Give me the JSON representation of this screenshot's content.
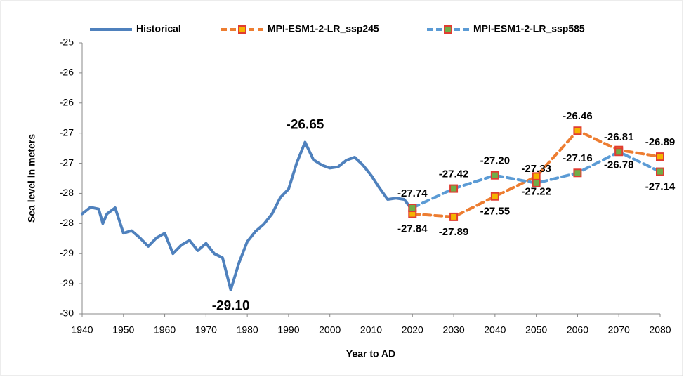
{
  "chart_data": {
    "type": "line",
    "x_label": "Year to AD",
    "y_label": "Sea level in meters",
    "xlim": [
      1940,
      2080
    ],
    "xticks": [
      1940,
      1950,
      1960,
      1970,
      1980,
      1990,
      2000,
      2010,
      2020,
      2030,
      2040,
      2050,
      2060,
      2070,
      2080
    ],
    "ylim": [
      -29.5,
      -25
    ],
    "yticks": [
      -25,
      {
        "value": -25.5,
        "label": "-26"
      },
      -26,
      {
        "value": -26.5,
        "label": "-27"
      },
      -27,
      {
        "value": -27.5,
        "label": "-28"
      },
      -28,
      {
        "value": -28.5,
        "label": "-29"
      },
      -29,
      {
        "value": -29.5,
        "label": "-30"
      }
    ],
    "grid": false,
    "legend": "top",
    "series": [
      {
        "name": "Historical",
        "color": "#4f81bd",
        "dashed": false,
        "x": [
          1940,
          1942,
          1944,
          1945,
          1946,
          1948,
          1950,
          1952,
          1954,
          1956,
          1958,
          1960,
          1962,
          1964,
          1966,
          1968,
          1970,
          1972,
          1974,
          1976,
          1978,
          1980,
          1982,
          1984,
          1986,
          1988,
          1990,
          1992,
          1994,
          1996,
          1998,
          2000,
          2002,
          2004,
          2006,
          2008,
          2010,
          2012,
          2014,
          2016,
          2018,
          2020
        ],
        "values": [
          -27.84,
          -27.73,
          -27.76,
          -28.0,
          -27.84,
          -27.74,
          -28.16,
          -28.12,
          -28.24,
          -28.38,
          -28.24,
          -28.16,
          -28.5,
          -28.36,
          -28.28,
          -28.45,
          -28.33,
          -28.5,
          -28.57,
          -29.1,
          -28.65,
          -28.3,
          -28.13,
          -28.01,
          -27.84,
          -27.57,
          -27.43,
          -26.99,
          -26.65,
          -26.94,
          -27.03,
          -27.08,
          -27.06,
          -26.95,
          -26.9,
          -27.03,
          -27.2,
          -27.41,
          -27.6,
          -27.58,
          -27.6,
          -27.78
        ],
        "value_labels": [
          null,
          null,
          null,
          null,
          null,
          null,
          null,
          null,
          null,
          null,
          null,
          null,
          null,
          null,
          null,
          null,
          null,
          null,
          null,
          "-29.10",
          null,
          null,
          null,
          null,
          null,
          null,
          null,
          null,
          "-26.65",
          null,
          null,
          null,
          null,
          null,
          null,
          null,
          null,
          null,
          null,
          null,
          null,
          null
        ]
      },
      {
        "name": "MPI-ESM1-2-LR_ssp245",
        "color": "#ed7d31",
        "dashed": true,
        "marker_fill": "#f4b400",
        "marker_edge": "#e03c31",
        "x": [
          2020,
          2030,
          2040,
          2050,
          2060,
          2070,
          2080
        ],
        "values": [
          -27.84,
          -27.89,
          -27.55,
          -27.22,
          -26.46,
          -26.78,
          -26.89
        ],
        "value_labels": [
          "-27.84",
          "-27.89",
          "-27.55",
          "-27.22",
          "-26.46",
          "-26.78",
          "-26.89"
        ]
      },
      {
        "name": "MPI-ESM1-2-LR_ssp585",
        "color": "#5b9bd5",
        "dashed": true,
        "marker_fill": "#70ad47",
        "marker_edge": "#e03c31",
        "x": [
          2020,
          2030,
          2040,
          2050,
          2060,
          2070,
          2080
        ],
        "values": [
          -27.74,
          -27.42,
          -27.2,
          -27.33,
          -27.16,
          -26.81,
          -27.14
        ],
        "value_labels": [
          "-27.74",
          "-27.42",
          "-27.20",
          "-27.33",
          "-27.16",
          "-26.81",
          "-27.14"
        ]
      }
    ]
  }
}
